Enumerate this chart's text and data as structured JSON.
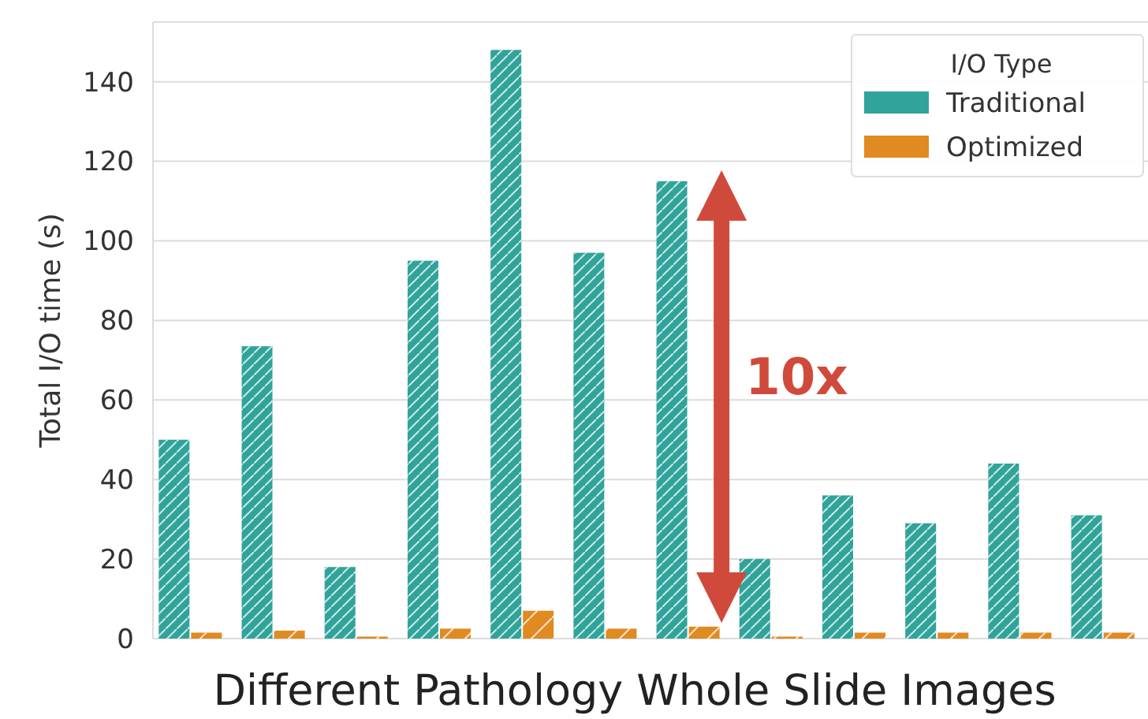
{
  "chart_data": {
    "type": "bar",
    "xlabel": "Different Pathology Whole Slide Images",
    "ylabel": "Total I/O time (s)",
    "legend_title": "I/O Type",
    "categories": [
      null,
      null,
      null,
      null,
      null,
      null,
      null,
      null,
      null,
      null,
      null,
      null
    ],
    "series": [
      {
        "name": "Traditional",
        "color": "#30a39a",
        "values": [
          50,
          73.5,
          18,
          95,
          148,
          97,
          115,
          20,
          36,
          29,
          44,
          31
        ]
      },
      {
        "name": "Optimized",
        "color": "#e08a22",
        "values": [
          1.5,
          2,
          0.5,
          2.5,
          7,
          2.5,
          3,
          0.5,
          1.5,
          1.5,
          1.5,
          1.5
        ]
      }
    ],
    "ylim": [
      0,
      155
    ],
    "yticks": [
      0,
      20,
      40,
      60,
      80,
      100,
      120,
      140
    ],
    "grid": "y",
    "legend": "top right",
    "annotations": [
      "10x"
    ]
  }
}
